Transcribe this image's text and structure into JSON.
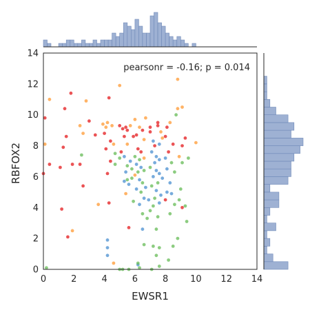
{
  "chart_data": {
    "type": "scatter",
    "subtype": "jointplot",
    "xlabel": "EWSR1",
    "ylabel": "RBFOX2",
    "xlim": [
      0,
      14
    ],
    "ylim": [
      0,
      14
    ],
    "xticks": [
      "0",
      "2",
      "4",
      "6",
      "8",
      "10",
      "12",
      "14"
    ],
    "yticks": [
      "0",
      "2",
      "4",
      "6",
      "8",
      "10",
      "12",
      "14"
    ],
    "annotation": "pearsonr = -0.16; p = 0.014",
    "grid": false,
    "marginal_histograms": true,
    "colors": {
      "red": "#e41a1c",
      "orange": "#ff9933",
      "green": "#66bb55",
      "blue": "#4a8fd0",
      "hist": "#9eb1d3"
    },
    "points": [
      {
        "x": 0.1,
        "y": 9.8,
        "c": "red"
      },
      {
        "x": 0.1,
        "y": 8.1,
        "c": "orange"
      },
      {
        "x": 0.0,
        "y": 6.2,
        "c": "red"
      },
      {
        "x": 0.4,
        "y": 11.0,
        "c": "orange"
      },
      {
        "x": 0.4,
        "y": 6.8,
        "c": "red"
      },
      {
        "x": 0.2,
        "y": 0.1,
        "c": "green"
      },
      {
        "x": 1.4,
        "y": 10.4,
        "c": "red"
      },
      {
        "x": 1.8,
        "y": 11.4,
        "c": "red"
      },
      {
        "x": 1.5,
        "y": 8.6,
        "c": "red"
      },
      {
        "x": 1.3,
        "y": 7.9,
        "c": "red"
      },
      {
        "x": 1.1,
        "y": 6.6,
        "c": "red"
      },
      {
        "x": 1.9,
        "y": 6.8,
        "c": "red"
      },
      {
        "x": 1.9,
        "y": 2.5,
        "c": "orange"
      },
      {
        "x": 1.2,
        "y": 3.9,
        "c": "red"
      },
      {
        "x": 1.6,
        "y": 2.1,
        "c": "red"
      },
      {
        "x": 2.4,
        "y": 9.3,
        "c": "orange"
      },
      {
        "x": 2.8,
        "y": 10.9,
        "c": "orange"
      },
      {
        "x": 3.0,
        "y": 9.6,
        "c": "red"
      },
      {
        "x": 2.6,
        "y": 8.8,
        "c": "orange"
      },
      {
        "x": 2.5,
        "y": 7.4,
        "c": "green"
      },
      {
        "x": 2.4,
        "y": 6.8,
        "c": "red"
      },
      {
        "x": 3.4,
        "y": 8.7,
        "c": "red"
      },
      {
        "x": 2.6,
        "y": 5.4,
        "c": "red"
      },
      {
        "x": 3.6,
        "y": 4.2,
        "c": "orange"
      },
      {
        "x": 3.9,
        "y": 9.4,
        "c": "orange"
      },
      {
        "x": 4.0,
        "y": 8.8,
        "c": "red"
      },
      {
        "x": 4.1,
        "y": 9.2,
        "c": "orange"
      },
      {
        "x": 4.3,
        "y": 11.1,
        "c": "red"
      },
      {
        "x": 4.2,
        "y": 9.5,
        "c": "orange"
      },
      {
        "x": 4.5,
        "y": 9.3,
        "c": "orange"
      },
      {
        "x": 4.4,
        "y": 8.3,
        "c": "red"
      },
      {
        "x": 4.6,
        "y": 8.1,
        "c": "orange"
      },
      {
        "x": 4.1,
        "y": 7.8,
        "c": "red"
      },
      {
        "x": 4.4,
        "y": 7.0,
        "c": "red"
      },
      {
        "x": 4.2,
        "y": 6.2,
        "c": "red"
      },
      {
        "x": 4.7,
        "y": 7.5,
        "c": "green"
      },
      {
        "x": 4.7,
        "y": 6.8,
        "c": "green"
      },
      {
        "x": 4.3,
        "y": 4.3,
        "c": "red"
      },
      {
        "x": 4.2,
        "y": 1.9,
        "c": "blue"
      },
      {
        "x": 4.2,
        "y": 1.4,
        "c": "blue"
      },
      {
        "x": 4.2,
        "y": 0.9,
        "c": "blue"
      },
      {
        "x": 4.6,
        "y": 0.4,
        "c": "orange"
      },
      {
        "x": 5.0,
        "y": 11.9,
        "c": "orange"
      },
      {
        "x": 5.0,
        "y": 9.3,
        "c": "red"
      },
      {
        "x": 5.2,
        "y": 9.1,
        "c": "red"
      },
      {
        "x": 5.4,
        "y": 9.2,
        "c": "red"
      },
      {
        "x": 5.5,
        "y": 9.0,
        "c": "red"
      },
      {
        "x": 5.7,
        "y": 9.3,
        "c": "orange"
      },
      {
        "x": 5.3,
        "y": 8.6,
        "c": "red"
      },
      {
        "x": 5.5,
        "y": 8.1,
        "c": "orange"
      },
      {
        "x": 5.9,
        "y": 8.6,
        "c": "red"
      },
      {
        "x": 5.1,
        "y": 7.6,
        "c": "red"
      },
      {
        "x": 5.0,
        "y": 7.2,
        "c": "green"
      },
      {
        "x": 5.3,
        "y": 7.3,
        "c": "blue"
      },
      {
        "x": 5.7,
        "y": 7.0,
        "c": "blue"
      },
      {
        "x": 5.5,
        "y": 6.7,
        "c": "green"
      },
      {
        "x": 5.4,
        "y": 6.3,
        "c": "blue"
      },
      {
        "x": 5.8,
        "y": 6.5,
        "c": "green"
      },
      {
        "x": 5.5,
        "y": 5.8,
        "c": "green"
      },
      {
        "x": 5.6,
        "y": 5.5,
        "c": "blue"
      },
      {
        "x": 5.3,
        "y": 5.7,
        "c": "blue"
      },
      {
        "x": 5.8,
        "y": 5.9,
        "c": "green"
      },
      {
        "x": 5.4,
        "y": 4.9,
        "c": "orange"
      },
      {
        "x": 5.9,
        "y": 4.4,
        "c": "green"
      },
      {
        "x": 5.6,
        "y": 2.7,
        "c": "red"
      },
      {
        "x": 5.2,
        "y": 0.0,
        "c": "green"
      },
      {
        "x": 5.6,
        "y": 0.0,
        "c": "green"
      },
      {
        "x": 5.0,
        "y": 0.0,
        "c": "green"
      },
      {
        "x": 6.0,
        "y": 9.7,
        "c": "orange"
      },
      {
        "x": 6.3,
        "y": 9.2,
        "c": "orange"
      },
      {
        "x": 6.5,
        "y": 9.0,
        "c": "red"
      },
      {
        "x": 6.1,
        "y": 8.7,
        "c": "red"
      },
      {
        "x": 6.6,
        "y": 8.4,
        "c": "orange"
      },
      {
        "x": 6.7,
        "y": 9.8,
        "c": "orange"
      },
      {
        "x": 6.2,
        "y": 7.8,
        "c": "red"
      },
      {
        "x": 6.4,
        "y": 7.6,
        "c": "red"
      },
      {
        "x": 6.3,
        "y": 7.1,
        "c": "green"
      },
      {
        "x": 6.0,
        "y": 7.3,
        "c": "green"
      },
      {
        "x": 6.6,
        "y": 7.2,
        "c": "orange"
      },
      {
        "x": 6.1,
        "y": 6.8,
        "c": "blue"
      },
      {
        "x": 6.4,
        "y": 6.6,
        "c": "blue"
      },
      {
        "x": 6.2,
        "y": 6.3,
        "c": "green"
      },
      {
        "x": 6.6,
        "y": 6.4,
        "c": "green"
      },
      {
        "x": 6.0,
        "y": 6.1,
        "c": "orange"
      },
      {
        "x": 6.3,
        "y": 5.8,
        "c": "blue"
      },
      {
        "x": 6.5,
        "y": 5.6,
        "c": "green"
      },
      {
        "x": 6.1,
        "y": 5.2,
        "c": "blue"
      },
      {
        "x": 6.4,
        "y": 5.0,
        "c": "green"
      },
      {
        "x": 6.7,
        "y": 5.3,
        "c": "blue"
      },
      {
        "x": 6.6,
        "y": 4.6,
        "c": "blue"
      },
      {
        "x": 6.3,
        "y": 4.2,
        "c": "blue"
      },
      {
        "x": 6.9,
        "y": 4.5,
        "c": "blue"
      },
      {
        "x": 6.5,
        "y": 3.6,
        "c": "green"
      },
      {
        "x": 6.8,
        "y": 3.3,
        "c": "green"
      },
      {
        "x": 6.5,
        "y": 2.6,
        "c": "blue"
      },
      {
        "x": 6.6,
        "y": 1.6,
        "c": "green"
      },
      {
        "x": 6.2,
        "y": 0.3,
        "c": "blue"
      },
      {
        "x": 6.3,
        "y": 0.1,
        "c": "green"
      },
      {
        "x": 6.2,
        "y": 0.4,
        "c": "green"
      },
      {
        "x": 7.0,
        "y": 9.2,
        "c": "red"
      },
      {
        "x": 7.0,
        "y": 8.9,
        "c": "red"
      },
      {
        "x": 7.5,
        "y": 9.5,
        "c": "red"
      },
      {
        "x": 7.5,
        "y": 9.3,
        "c": "red"
      },
      {
        "x": 7.7,
        "y": 8.9,
        "c": "orange"
      },
      {
        "x": 7.2,
        "y": 8.3,
        "c": "blue"
      },
      {
        "x": 7.6,
        "y": 8.1,
        "c": "blue"
      },
      {
        "x": 7.8,
        "y": 8.5,
        "c": "orange"
      },
      {
        "x": 7.3,
        "y": 8.0,
        "c": "red"
      },
      {
        "x": 7.1,
        "y": 7.6,
        "c": "blue"
      },
      {
        "x": 7.4,
        "y": 7.3,
        "c": "blue"
      },
      {
        "x": 7.6,
        "y": 7.1,
        "c": "blue"
      },
      {
        "x": 7.3,
        "y": 6.9,
        "c": "blue"
      },
      {
        "x": 7.0,
        "y": 6.6,
        "c": "green"
      },
      {
        "x": 7.4,
        "y": 6.4,
        "c": "blue"
      },
      {
        "x": 7.6,
        "y": 6.2,
        "c": "blue"
      },
      {
        "x": 7.2,
        "y": 6.0,
        "c": "blue"
      },
      {
        "x": 7.8,
        "y": 5.9,
        "c": "blue"
      },
      {
        "x": 7.5,
        "y": 5.6,
        "c": "green"
      },
      {
        "x": 7.1,
        "y": 5.4,
        "c": "green"
      },
      {
        "x": 7.4,
        "y": 5.1,
        "c": "blue"
      },
      {
        "x": 7.7,
        "y": 4.8,
        "c": "blue"
      },
      {
        "x": 7.3,
        "y": 4.6,
        "c": "green"
      },
      {
        "x": 7.6,
        "y": 4.3,
        "c": "blue"
      },
      {
        "x": 7.2,
        "y": 4.1,
        "c": "green"
      },
      {
        "x": 7.0,
        "y": 3.8,
        "c": "green"
      },
      {
        "x": 7.5,
        "y": 3.4,
        "c": "green"
      },
      {
        "x": 7.4,
        "y": 2.6,
        "c": "green"
      },
      {
        "x": 7.2,
        "y": 1.5,
        "c": "green"
      },
      {
        "x": 7.6,
        "y": 1.4,
        "c": "green"
      },
      {
        "x": 7.4,
        "y": 0.9,
        "c": "green"
      },
      {
        "x": 7.6,
        "y": 0.2,
        "c": "green"
      },
      {
        "x": 7.1,
        "y": 0.0,
        "c": "green"
      },
      {
        "x": 8.1,
        "y": 9.2,
        "c": "red"
      },
      {
        "x": 8.3,
        "y": 9.5,
        "c": "orange"
      },
      {
        "x": 8.0,
        "y": 8.6,
        "c": "red"
      },
      {
        "x": 8.5,
        "y": 8.1,
        "c": "red"
      },
      {
        "x": 8.2,
        "y": 7.6,
        "c": "red"
      },
      {
        "x": 8.0,
        "y": 7.2,
        "c": "blue"
      },
      {
        "x": 8.4,
        "y": 6.9,
        "c": "green"
      },
      {
        "x": 8.1,
        "y": 6.5,
        "c": "blue"
      },
      {
        "x": 8.6,
        "y": 6.3,
        "c": "green"
      },
      {
        "x": 8.3,
        "y": 5.6,
        "c": "blue"
      },
      {
        "x": 8.1,
        "y": 5.0,
        "c": "blue"
      },
      {
        "x": 8.4,
        "y": 4.9,
        "c": "blue"
      },
      {
        "x": 8.0,
        "y": 4.5,
        "c": "red"
      },
      {
        "x": 8.6,
        "y": 4.2,
        "c": "green"
      },
      {
        "x": 8.3,
        "y": 3.6,
        "c": "green"
      },
      {
        "x": 8.5,
        "y": 1.5,
        "c": "green"
      },
      {
        "x": 8.2,
        "y": 0.6,
        "c": "green"
      },
      {
        "x": 8.8,
        "y": 12.3,
        "c": "orange"
      },
      {
        "x": 8.8,
        "y": 10.4,
        "c": "orange"
      },
      {
        "x": 9.1,
        "y": 10.5,
        "c": "orange"
      },
      {
        "x": 8.7,
        "y": 10.0,
        "c": "green"
      },
      {
        "x": 9.1,
        "y": 8.0,
        "c": "red"
      },
      {
        "x": 9.3,
        "y": 8.5,
        "c": "red"
      },
      {
        "x": 8.9,
        "y": 7.3,
        "c": "orange"
      },
      {
        "x": 9.5,
        "y": 7.2,
        "c": "green"
      },
      {
        "x": 9.1,
        "y": 6.9,
        "c": "green"
      },
      {
        "x": 9.0,
        "y": 5.2,
        "c": "green"
      },
      {
        "x": 8.9,
        "y": 4.5,
        "c": "green"
      },
      {
        "x": 9.3,
        "y": 4.1,
        "c": "green"
      },
      {
        "x": 9.1,
        "y": 4.0,
        "c": "red"
      },
      {
        "x": 9.4,
        "y": 3.1,
        "c": "green"
      },
      {
        "x": 8.8,
        "y": 2.0,
        "c": "green"
      },
      {
        "x": 10.0,
        "y": 8.2,
        "c": "orange"
      }
    ],
    "hist_x": {
      "bin_edges": [
        0,
        0.25,
        0.5,
        0.75,
        1.0,
        1.25,
        1.5,
        1.75,
        2.0,
        2.25,
        2.5,
        2.75,
        3.0,
        3.25,
        3.5,
        3.75,
        4.0,
        4.25,
        4.5,
        4.75,
        5.0,
        5.25,
        5.5,
        5.75,
        6.0,
        6.25,
        6.5,
        6.75,
        7.0,
        7.25,
        7.5,
        7.75,
        8.0,
        8.25,
        8.5,
        8.75,
        9.0,
        9.25,
        9.5,
        9.75,
        10.0
      ],
      "counts": [
        2,
        1,
        0,
        0,
        1,
        1,
        2,
        2,
        1,
        1,
        2,
        1,
        1,
        2,
        1,
        2,
        2,
        2,
        4,
        3,
        4,
        7,
        6,
        5,
        8,
        6,
        4,
        4,
        9,
        10,
        7,
        6,
        4,
        3,
        2,
        3,
        2,
        1,
        0,
        1
      ]
    },
    "hist_y": {
      "bin_edges": [
        0,
        0.5,
        1.0,
        1.5,
        2.0,
        2.5,
        3.0,
        3.5,
        4.0,
        4.5,
        5.0,
        5.5,
        6.0,
        6.5,
        7.0,
        7.5,
        8.0,
        8.5,
        9.0,
        9.5,
        10.0,
        10.5,
        11.0,
        11.5,
        12.0,
        12.5
      ],
      "counts": [
        8,
        3,
        1,
        2,
        1,
        4,
        1,
        2,
        5,
        5,
        2,
        8,
        9,
        9,
        10,
        12,
        13,
        9,
        10,
        8,
        4,
        2,
        1,
        1,
        1
      ]
    }
  }
}
